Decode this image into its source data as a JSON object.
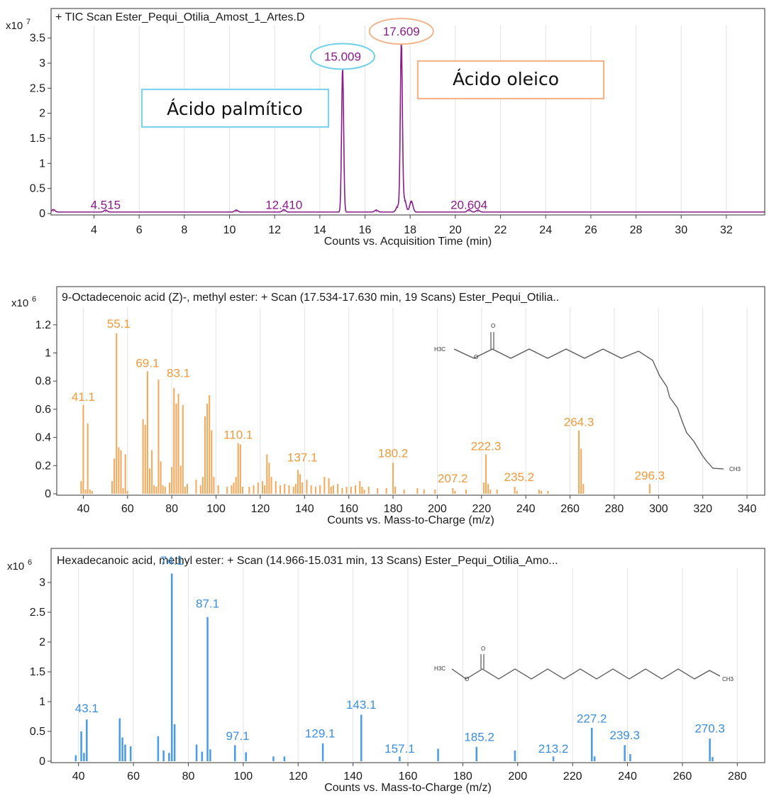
{
  "chart_data": [
    {
      "type": "line",
      "title": "+ TIC Scan Ester_Pequi_Otilia_Amost_1_Artes.D",
      "xlabel": "Counts vs. Acquisition Time (min)",
      "ylabel": "",
      "multiplier": {
        "base": "x10",
        "exp": "7"
      },
      "xlim": [
        2.1,
        33.7
      ],
      "ylim": [
        0,
        3.75
      ],
      "xticks": [
        4,
        6,
        8,
        10,
        12,
        14,
        16,
        18,
        20,
        22,
        24,
        26,
        28,
        30,
        32
      ],
      "yticks": [
        0,
        0.5,
        1,
        1.5,
        2,
        2.5,
        3,
        3.5
      ],
      "ytick_labels": [
        "0",
        "0.5",
        "1",
        "1.5",
        "2",
        "2.5",
        "3",
        "3.5"
      ],
      "color": "#8b1a8b",
      "baseline": 0.03,
      "peaks": [
        {
          "x": 2.2,
          "y": 0.05
        },
        {
          "x": 4.515,
          "y": 0.04
        },
        {
          "x": 10.3,
          "y": 0.04
        },
        {
          "x": 12.41,
          "y": 0.05
        },
        {
          "x": 15.009,
          "y": 2.88
        },
        {
          "x": 16.5,
          "y": 0.04
        },
        {
          "x": 17.45,
          "y": 0.12
        },
        {
          "x": 17.609,
          "y": 3.38
        },
        {
          "x": 17.75,
          "y": 0.25
        },
        {
          "x": 18.05,
          "y": 0.22
        },
        {
          "x": 20.604,
          "y": 0.05
        },
        {
          "x": 21.0,
          "y": 0.04
        }
      ],
      "peak_labels": [
        {
          "text": "4.515",
          "x": 4.515,
          "y": 0.09
        },
        {
          "text": "12.410",
          "x": 12.41,
          "y": 0.09
        },
        {
          "text": "15.009",
          "x": 15.009,
          "y": 3.05,
          "circled": true,
          "circle_color": "#6fd0ea"
        },
        {
          "text": "17.609",
          "x": 17.609,
          "y": 3.55,
          "circled": true,
          "circle_color": "#f2b58c"
        },
        {
          "text": "20.604",
          "x": 20.604,
          "y": 0.09
        }
      ],
      "callouts": [
        {
          "text": "Ácido palmítico",
          "border": "#7fd3ec"
        },
        {
          "text": "Ácido oleico",
          "border": "#f5b48a"
        }
      ]
    },
    {
      "type": "bar",
      "title": "9-Octadecenoic acid (Z)-, methyl ester: + Scan (17.534-17.630 min, 19 Scans) Ester_Pequi_Otilia..",
      "xlabel": "Counts vs. Mass-to-Charge (m/z)",
      "ylabel": "",
      "multiplier": {
        "base": "x10",
        "exp": "6"
      },
      "xlim": [
        28,
        348
      ],
      "ylim": [
        0,
        1.32
      ],
      "xticks": [
        40,
        60,
        80,
        100,
        120,
        140,
        160,
        180,
        200,
        220,
        240,
        260,
        280,
        300,
        320,
        340
      ],
      "yticks": [
        0,
        0.2,
        0.4,
        0.6,
        0.8,
        1,
        1.2
      ],
      "ytick_labels": [
        "0",
        "0.2",
        "0.4",
        "0.6",
        "0.8",
        "1",
        "1.2"
      ],
      "color": "#f5a85a",
      "label_color": "#f29a3a",
      "x": [
        39,
        40,
        41,
        42,
        43,
        44,
        53,
        54,
        55,
        56,
        57,
        58,
        59,
        60,
        67,
        68,
        69,
        70,
        71,
        72,
        73,
        74,
        75,
        76,
        77,
        79,
        80,
        81,
        82,
        83,
        84,
        85,
        86,
        87,
        91,
        93,
        94,
        95,
        96,
        97,
        98,
        99,
        101,
        105,
        107,
        108,
        109,
        110,
        111,
        112,
        115,
        117,
        119,
        121,
        122,
        123,
        124,
        125,
        127,
        129,
        131,
        133,
        135,
        136,
        137,
        138,
        139,
        141,
        143,
        145,
        147,
        149,
        151,
        152,
        153,
        155,
        157,
        159,
        161,
        163,
        165,
        166,
        167,
        169,
        173,
        177,
        180,
        181,
        185,
        191,
        194,
        199,
        207,
        208,
        213,
        221,
        222,
        223,
        224,
        227,
        235,
        236,
        246,
        247,
        250,
        264,
        265,
        266,
        296
      ],
      "values": [
        0.09,
        0.63,
        0.03,
        0.5,
        0.03,
        0.02,
        0.09,
        0.25,
        1.14,
        0.33,
        0.31,
        0.04,
        0.28,
        0.02,
        0.53,
        0.49,
        0.87,
        0.18,
        0.31,
        0.06,
        0.05,
        0.81,
        0.23,
        0.06,
        0.05,
        0.08,
        0.19,
        0.75,
        0.64,
        0.71,
        0.2,
        0.63,
        0.05,
        0.07,
        0.1,
        0.06,
        0.12,
        0.55,
        0.64,
        0.7,
        0.45,
        0.12,
        0.06,
        0.05,
        0.06,
        0.08,
        0.12,
        0.36,
        0.35,
        0.05,
        0.05,
        0.06,
        0.08,
        0.09,
        0.06,
        0.28,
        0.22,
        0.12,
        0.09,
        0.06,
        0.07,
        0.06,
        0.05,
        0.07,
        0.17,
        0.14,
        0.08,
        0.1,
        0.06,
        0.05,
        0.06,
        0.12,
        0.11,
        0.05,
        0.06,
        0.07,
        0.04,
        0.05,
        0.05,
        0.06,
        0.09,
        0.05,
        0.03,
        0.05,
        0.04,
        0.04,
        0.22,
        0.05,
        0.03,
        0.04,
        0.03,
        0.03,
        0.04,
        0.02,
        0.03,
        0.08,
        0.28,
        0.07,
        0.03,
        0.03,
        0.05,
        0.02,
        0.03,
        0.02,
        0.02,
        0.45,
        0.32,
        0.07,
        0.07
      ],
      "peak_labels": [
        {
          "text": "41.1",
          "x": 40,
          "y": 0.66
        },
        {
          "text": "55.1",
          "x": 56,
          "y": 1.18
        },
        {
          "text": "69.1",
          "x": 69,
          "y": 0.9
        },
        {
          "text": "83.1",
          "x": 83,
          "y": 0.83
        },
        {
          "text": "110.1",
          "x": 110,
          "y": 0.39
        },
        {
          "text": "137.1",
          "x": 139,
          "y": 0.23
        },
        {
          "text": "180.2",
          "x": 180,
          "y": 0.26
        },
        {
          "text": "207.2",
          "x": 207,
          "y": 0.08
        },
        {
          "text": "222.3",
          "x": 222,
          "y": 0.31
        },
        {
          "text": "235.2",
          "x": 237,
          "y": 0.09
        },
        {
          "text": "264.3",
          "x": 264,
          "y": 0.48
        },
        {
          "text": "296.3",
          "x": 296,
          "y": 0.1
        }
      ],
      "structure": {
        "left": "H3C",
        "right": "CH3",
        "top": "O",
        "mid": "O"
      }
    },
    {
      "type": "bar",
      "title": "Hexadecanoic acid, methyl ester: + Scan (14.966-15.031 min, 13 Scans) Ester_Pequi_Otilia_Amo...",
      "xlabel": "Counts vs. Mass-to-Charge (m/z)",
      "ylabel": "",
      "multiplier": {
        "base": "x10",
        "exp": "6"
      },
      "xlim": [
        30,
        290
      ],
      "ylim": [
        0,
        3.25
      ],
      "xticks": [
        40,
        60,
        80,
        100,
        120,
        140,
        160,
        180,
        200,
        220,
        240,
        260,
        280
      ],
      "yticks": [
        0,
        0.5,
        1,
        1.5,
        2,
        2.5,
        3
      ],
      "ytick_labels": [
        "0",
        "0.5",
        "1",
        "1.5",
        "2",
        "2.5",
        "3"
      ],
      "color": "#4a9be8",
      "label_color": "#3b8fe0",
      "x": [
        39,
        41,
        42,
        43,
        55,
        56,
        57,
        59,
        69,
        71,
        73,
        74,
        75,
        83,
        85,
        87,
        88,
        97,
        101,
        111,
        115,
        129,
        143,
        157,
        171,
        185,
        199,
        213,
        227,
        228,
        239,
        241,
        270,
        271
      ],
      "values": [
        0.1,
        0.5,
        0.14,
        0.7,
        0.72,
        0.4,
        0.28,
        0.25,
        0.42,
        0.18,
        0.14,
        3.15,
        0.62,
        0.28,
        0.16,
        2.42,
        0.2,
        0.27,
        0.15,
        0.08,
        0.08,
        0.3,
        0.78,
        0.08,
        0.21,
        0.24,
        0.18,
        0.08,
        0.56,
        0.08,
        0.27,
        0.12,
        0.38,
        0.07
      ],
      "peak_labels": [
        {
          "text": "43.1",
          "x": 43,
          "y": 0.82
        },
        {
          "text": "74.1",
          "x": 74,
          "y": 3.3
        },
        {
          "text": "87.1",
          "x": 87,
          "y": 2.58
        },
        {
          "text": "97.1",
          "x": 98,
          "y": 0.36
        },
        {
          "text": "129.1",
          "x": 128,
          "y": 0.4
        },
        {
          "text": "143.1",
          "x": 143,
          "y": 0.88
        },
        {
          "text": "157.1",
          "x": 157,
          "y": 0.14
        },
        {
          "text": "185.2",
          "x": 186,
          "y": 0.34
        },
        {
          "text": "213.2",
          "x": 213,
          "y": 0.14
        },
        {
          "text": "227.2",
          "x": 227,
          "y": 0.65
        },
        {
          "text": "239.3",
          "x": 239,
          "y": 0.37
        },
        {
          "text": "270.3",
          "x": 270,
          "y": 0.48
        }
      ],
      "structure": {
        "left": "H3C",
        "right": "CH3",
        "top": "O",
        "mid": "O"
      }
    }
  ]
}
